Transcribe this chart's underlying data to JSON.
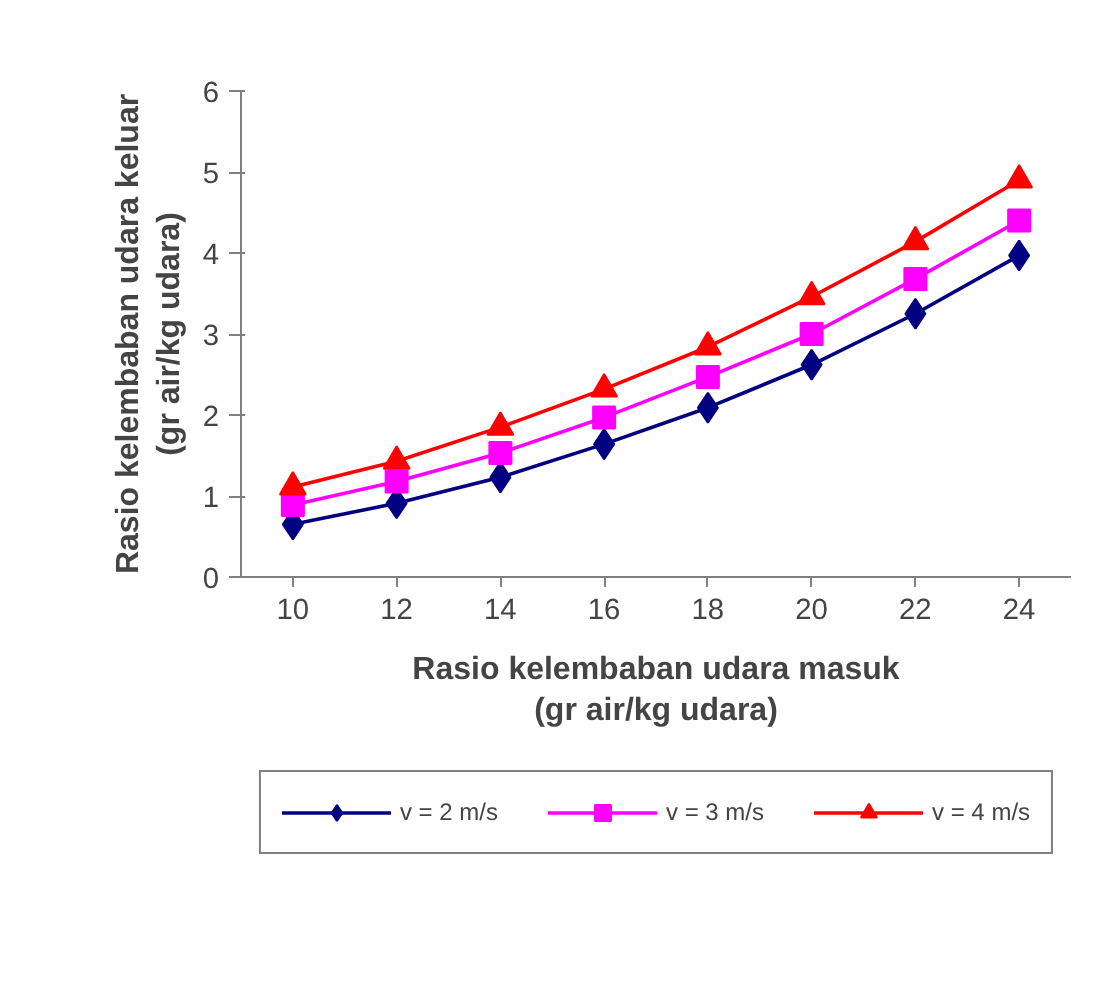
{
  "chart_data": {
    "type": "line",
    "xlabel": "Rasio kelembaban udara masuk\n(gr air/kg udara)",
    "ylabel": "Rasio kelembaban udara keluar\n(gr air/kg udara)",
    "categories": [
      "10",
      "12",
      "14",
      "16",
      "18",
      "20",
      "22",
      "24"
    ],
    "ylim": [
      0,
      6
    ],
    "yticks": [
      0,
      1,
      2,
      3,
      4,
      5,
      6
    ],
    "grid": false,
    "legend": "bottom",
    "line_style": "solid",
    "series": [
      {
        "name": "v = 2 m/s",
        "color": "#000080",
        "marker": "diamond",
        "values": [
          0.65,
          0.91,
          1.23,
          1.64,
          2.09,
          2.62,
          3.25,
          3.97
        ]
      },
      {
        "name": "v = 3 m/s",
        "color": "#ff00ff",
        "marker": "square",
        "values": [
          0.89,
          1.18,
          1.53,
          1.97,
          2.47,
          3.0,
          3.68,
          4.4
        ]
      },
      {
        "name": "v = 4 m/s",
        "color": "#ff0000",
        "marker": "triangle",
        "values": [
          1.11,
          1.43,
          1.85,
          2.32,
          2.84,
          3.46,
          4.14,
          4.9
        ]
      }
    ]
  }
}
